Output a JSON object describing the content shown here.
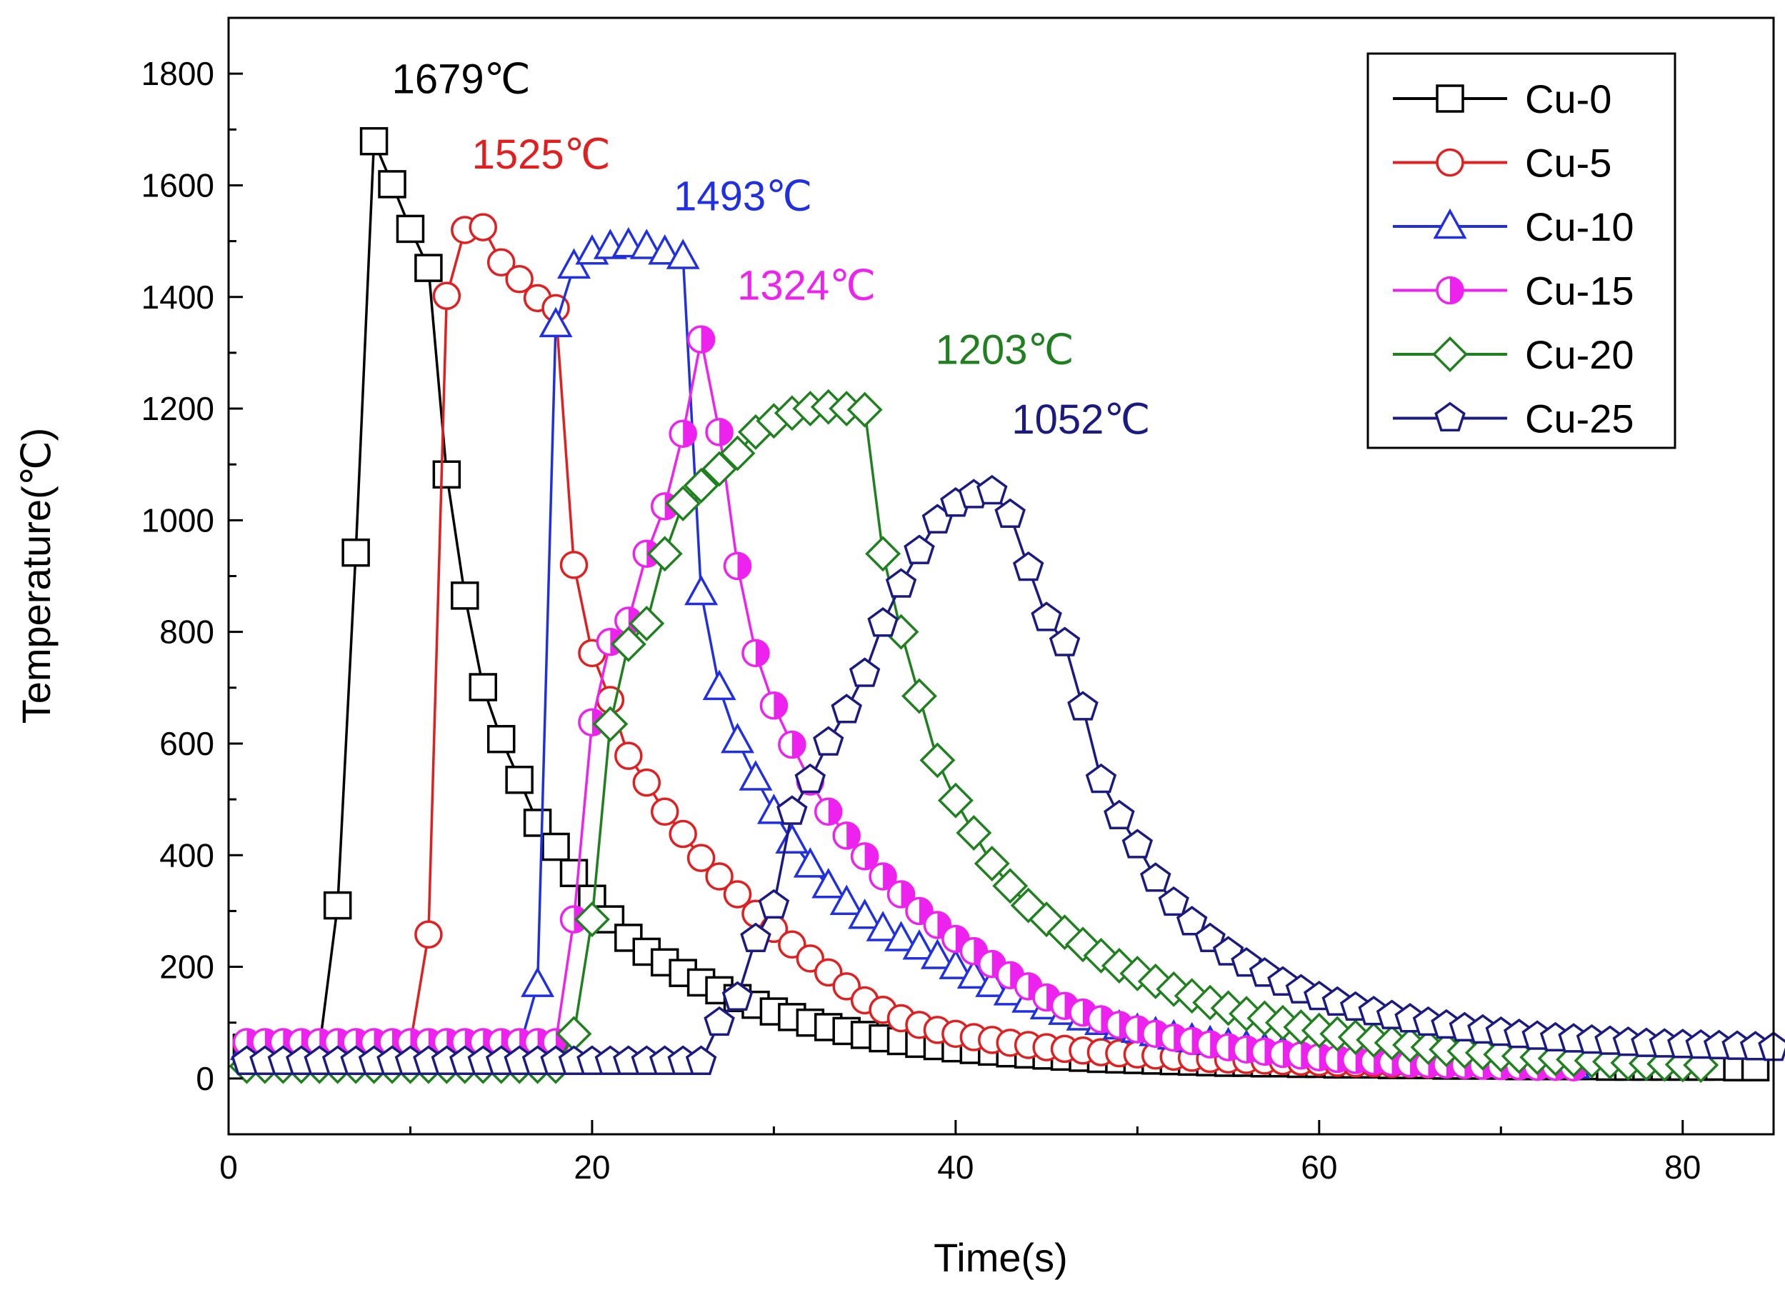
{
  "chart_data": {
    "type": "line",
    "title": "",
    "xlabel": "Time(s)",
    "ylabel": "Temperature(℃)",
    "xlim": [
      0,
      85
    ],
    "ylim": [
      -100,
      1900
    ],
    "x_ticks": [
      "0",
      "20",
      "40",
      "60",
      "80"
    ],
    "y_ticks": [
      "0",
      "200",
      "400",
      "600",
      "800",
      "1000",
      "1200",
      "1400",
      "1600",
      "1800"
    ],
    "legend_position": "top-right",
    "grid": false,
    "series": [
      {
        "name": "Cu-0",
        "color": "#000000",
        "marker": "square",
        "fill": "open",
        "x": [
          1,
          2,
          3,
          4,
          5,
          6,
          7,
          8,
          9,
          10,
          11,
          12,
          13,
          14,
          15,
          16,
          17,
          18,
          19,
          20,
          21,
          22,
          23,
          24,
          25,
          26,
          27,
          28,
          29,
          30,
          31,
          32,
          33,
          34,
          35,
          36,
          37,
          38,
          39,
          40,
          41,
          42,
          43,
          44,
          45,
          46,
          47,
          48,
          49,
          50,
          51,
          52,
          53,
          54,
          55,
          56,
          57,
          58,
          59,
          60,
          61,
          62,
          63,
          64,
          65,
          66,
          67,
          68,
          69,
          70,
          71,
          72,
          73,
          74,
          75,
          76,
          77,
          78,
          79,
          80,
          81,
          82,
          83,
          84
        ],
        "y": [
          55,
          55,
          55,
          55,
          55,
          310,
          942,
          1679,
          1602,
          1522,
          1452,
          1082,
          865,
          701,
          608,
          535,
          458,
          415,
          368,
          322,
          285,
          252,
          227,
          208,
          189,
          172,
          158,
          144,
          132,
          120,
          110,
          100,
          92,
          85,
          78,
          72,
          67,
          62,
          58,
          54,
          51,
          48,
          45,
          43,
          41,
          39,
          37,
          35,
          34,
          33,
          32,
          31,
          30,
          29,
          28,
          28,
          27,
          27,
          26,
          26,
          25,
          25,
          25,
          24,
          24,
          24,
          23,
          23,
          23,
          23,
          22,
          22,
          22,
          22,
          22,
          21,
          21,
          21,
          21,
          21,
          21,
          21,
          20,
          20
        ]
      },
      {
        "name": "Cu-5",
        "color": "#e02020",
        "marker": "circle",
        "fill": "open",
        "x": [
          1,
          2,
          3,
          4,
          5,
          6,
          7,
          8,
          9,
          10,
          11,
          12,
          13,
          14,
          15,
          16,
          17,
          18,
          19,
          20,
          21,
          22,
          23,
          24,
          25,
          26,
          27,
          28,
          29,
          30,
          31,
          32,
          33,
          34,
          35,
          36,
          37,
          38,
          39,
          40,
          41,
          42,
          43,
          44,
          45,
          46,
          47,
          48,
          49,
          50,
          51,
          52,
          53,
          54,
          55,
          56,
          57,
          58,
          59,
          60,
          61,
          62,
          63,
          64,
          65,
          66,
          67,
          68,
          69,
          70,
          71,
          72,
          73,
          74
        ],
        "y": [
          62,
          62,
          62,
          62,
          62,
          62,
          62,
          62,
          62,
          62,
          258,
          1402,
          1520,
          1525,
          1462,
          1432,
          1398,
          1380,
          920,
          762,
          678,
          578,
          530,
          478,
          438,
          395,
          362,
          330,
          295,
          268,
          240,
          215,
          190,
          165,
          140,
          123,
          108,
          96,
          87,
          80,
          74,
          69,
          64,
          60,
          56,
          53,
          50,
          47,
          45,
          43,
          41,
          39,
          37,
          35,
          34,
          33,
          32,
          31,
          30,
          29,
          28,
          27,
          27,
          26,
          26,
          25,
          25,
          24,
          24,
          24,
          23,
          23,
          22,
          22
        ]
      },
      {
        "name": "Cu-10",
        "color": "#2030e0",
        "marker": "triangle",
        "fill": "open",
        "x": [
          1,
          2,
          3,
          4,
          5,
          6,
          7,
          8,
          9,
          10,
          11,
          12,
          13,
          14,
          15,
          16,
          17,
          18,
          19,
          20,
          21,
          22,
          23,
          24,
          25,
          26,
          27,
          28,
          29,
          30,
          31,
          32,
          33,
          34,
          35,
          36,
          37,
          38,
          39,
          40,
          41,
          42,
          43,
          44,
          45,
          46,
          47,
          48,
          49,
          50,
          51,
          52,
          53,
          54,
          55,
          56,
          57,
          58,
          59,
          60,
          61,
          62,
          63,
          64,
          65,
          66,
          67,
          68,
          69,
          70,
          71,
          72,
          73,
          74
        ],
        "y": [
          55,
          55,
          55,
          55,
          55,
          55,
          55,
          55,
          55,
          55,
          55,
          55,
          55,
          55,
          55,
          55,
          168,
          1350,
          1455,
          1480,
          1490,
          1493,
          1490,
          1480,
          1472,
          870,
          700,
          605,
          538,
          478,
          425,
          382,
          345,
          315,
          290,
          268,
          250,
          235,
          218,
          200,
          183,
          168,
          153,
          140,
          128,
          118,
          108,
          100,
          92,
          86,
          80,
          74,
          69,
          64,
          60,
          56,
          52,
          49,
          46,
          43,
          41,
          38,
          36,
          34,
          32,
          31,
          29,
          28,
          27,
          26,
          25,
          24,
          23,
          22
        ]
      },
      {
        "name": "Cu-15",
        "color": "#ee22ee",
        "marker": "half-circle",
        "fill": "half",
        "x": [
          1,
          2,
          3,
          4,
          5,
          6,
          7,
          8,
          9,
          10,
          11,
          12,
          13,
          14,
          15,
          16,
          17,
          18,
          19,
          20,
          21,
          22,
          23,
          24,
          25,
          26,
          27,
          28,
          29,
          30,
          31,
          32,
          33,
          34,
          35,
          36,
          37,
          38,
          39,
          40,
          41,
          42,
          43,
          44,
          45,
          46,
          47,
          48,
          49,
          50,
          51,
          52,
          53,
          54,
          55,
          56,
          57,
          58,
          59,
          60,
          61,
          62,
          63,
          64,
          65,
          66,
          67,
          68,
          69,
          70,
          71,
          72,
          73,
          74
        ],
        "y": [
          65,
          65,
          65,
          65,
          65,
          65,
          65,
          65,
          65,
          65,
          65,
          65,
          65,
          65,
          65,
          65,
          65,
          65,
          285,
          638,
          782,
          820,
          940,
          1025,
          1155,
          1324,
          1158,
          918,
          762,
          668,
          598,
          532,
          478,
          435,
          398,
          362,
          330,
          300,
          275,
          250,
          228,
          205,
          185,
          165,
          145,
          130,
          118,
          106,
          96,
          88,
          80,
          73,
          67,
          61,
          56,
          52,
          48,
          44,
          41,
          38,
          35,
          33,
          31,
          29,
          27,
          26,
          25,
          24,
          23,
          22,
          22,
          21,
          21,
          20
        ]
      },
      {
        "name": "Cu-20",
        "color": "#208020",
        "marker": "diamond",
        "fill": "open",
        "x": [
          1,
          2,
          3,
          4,
          5,
          6,
          7,
          8,
          9,
          10,
          11,
          12,
          13,
          14,
          15,
          16,
          17,
          18,
          19,
          20,
          21,
          22,
          23,
          24,
          25,
          26,
          27,
          28,
          29,
          30,
          31,
          32,
          33,
          34,
          35,
          36,
          37,
          38,
          39,
          40,
          41,
          42,
          43,
          44,
          45,
          46,
          47,
          48,
          49,
          50,
          51,
          52,
          53,
          54,
          55,
          56,
          57,
          58,
          59,
          60,
          61,
          62,
          63,
          64,
          65,
          66,
          67,
          68,
          69,
          70,
          71,
          72,
          73,
          74,
          75,
          76,
          77,
          78,
          79,
          80,
          81
        ],
        "y": [
          22,
          22,
          22,
          22,
          22,
          22,
          22,
          22,
          22,
          22,
          22,
          22,
          22,
          22,
          22,
          22,
          22,
          22,
          80,
          285,
          635,
          778,
          815,
          940,
          1030,
          1062,
          1092,
          1120,
          1158,
          1178,
          1192,
          1200,
          1203,
          1200,
          1198,
          940,
          800,
          685,
          570,
          498,
          440,
          385,
          345,
          310,
          285,
          262,
          240,
          220,
          202,
          188,
          174,
          160,
          148,
          136,
          126,
          116,
          108,
          100,
          92,
          86,
          80,
          74,
          69,
          64,
          60,
          56,
          52,
          49,
          46,
          43,
          40,
          38,
          36,
          34,
          32,
          30,
          28,
          27,
          26,
          25,
          24
        ]
      },
      {
        "name": "Cu-25",
        "color": "#1a1a80",
        "marker": "pentagon",
        "fill": "open",
        "x": [
          1,
          2,
          3,
          4,
          5,
          6,
          7,
          8,
          9,
          10,
          11,
          12,
          13,
          14,
          15,
          16,
          17,
          18,
          19,
          20,
          21,
          22,
          23,
          24,
          25,
          26,
          27,
          28,
          29,
          30,
          31,
          32,
          33,
          34,
          35,
          36,
          37,
          38,
          39,
          40,
          41,
          42,
          43,
          44,
          45,
          46,
          47,
          48,
          49,
          50,
          51,
          52,
          53,
          54,
          55,
          56,
          57,
          58,
          59,
          60,
          61,
          62,
          63,
          64,
          65,
          66,
          67,
          68,
          69,
          70,
          71,
          72,
          73,
          74,
          75,
          76,
          77,
          78,
          79,
          80,
          81,
          82,
          83,
          84,
          85
        ],
        "y": [
          30,
          30,
          30,
          30,
          30,
          30,
          30,
          30,
          30,
          30,
          30,
          30,
          30,
          30,
          30,
          30,
          30,
          30,
          30,
          30,
          30,
          30,
          30,
          30,
          30,
          30,
          100,
          145,
          250,
          310,
          478,
          535,
          602,
          660,
          725,
          815,
          885,
          945,
          1000,
          1030,
          1045,
          1052,
          1010,
          915,
          825,
          780,
          665,
          535,
          470,
          418,
          358,
          315,
          280,
          250,
          226,
          206,
          188,
          172,
          158,
          146,
          136,
          127,
          119,
          112,
          106,
          100,
          95,
          90,
          86,
          82,
          78,
          75,
          72,
          70,
          68,
          66,
          64,
          62,
          61,
          60,
          59,
          58,
          57,
          56,
          55
        ]
      }
    ],
    "annotations": [
      {
        "text": "1679℃",
        "series": "Cu-0",
        "x": 12.8,
        "y": 1765
      },
      {
        "text": "1525℃",
        "series": "Cu-5",
        "x": 17.2,
        "y": 1630
      },
      {
        "text": "1493℃",
        "series": "Cu-10",
        "x": 28.3,
        "y": 1555
      },
      {
        "text": "1324℃",
        "series": "Cu-15",
        "x": 31.8,
        "y": 1395
      },
      {
        "text": "1203℃",
        "series": "Cu-20",
        "x": 42.7,
        "y": 1280
      },
      {
        "text": "1052℃",
        "series": "Cu-25",
        "x": 46.9,
        "y": 1155
      }
    ]
  }
}
